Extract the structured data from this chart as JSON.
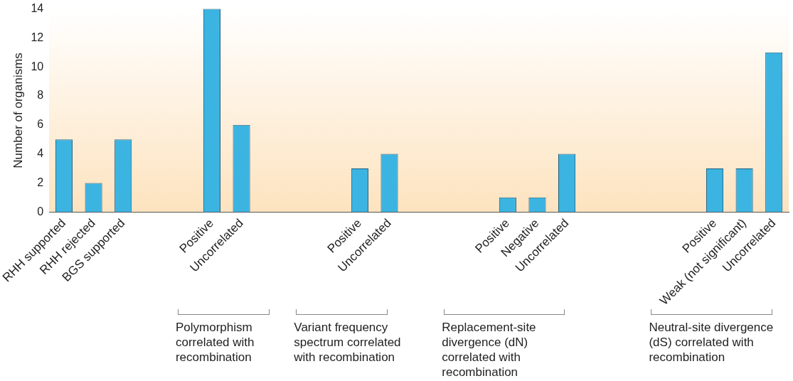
{
  "chart_data": {
    "type": "bar",
    "ylabel": "Number of organisms",
    "categories": [
      "RHH supported",
      "RHH rejected",
      "BGS supported",
      null,
      null,
      "Positive",
      "Uncorrelated",
      null,
      null,
      null,
      "Positive",
      "Uncorrelated",
      null,
      null,
      null,
      "Positive",
      "Negative",
      "Uncorrelated",
      null,
      null,
      null,
      null,
      "Positive",
      "Weak (not significant)",
      "Uncorrelated"
    ],
    "values": [
      5,
      2,
      5,
      null,
      null,
      14,
      6,
      null,
      null,
      null,
      3,
      4,
      null,
      null,
      null,
      1,
      1,
      4,
      null,
      null,
      null,
      null,
      3,
      3,
      11
    ],
    "color": "#3cb4e2",
    "ylim": [
      0,
      14
    ],
    "yticks": [
      0,
      2,
      4,
      6,
      8,
      10,
      12,
      14
    ],
    "grid": false,
    "legend": false,
    "annotations": [
      "Polymorphism correlated with recombination",
      "Variant frequency spectrum correlated with recombination",
      "Replacement-site divergence (dN) correlated with recombination",
      "Neutral-site divergence (dS) correlated with recombination"
    ]
  }
}
